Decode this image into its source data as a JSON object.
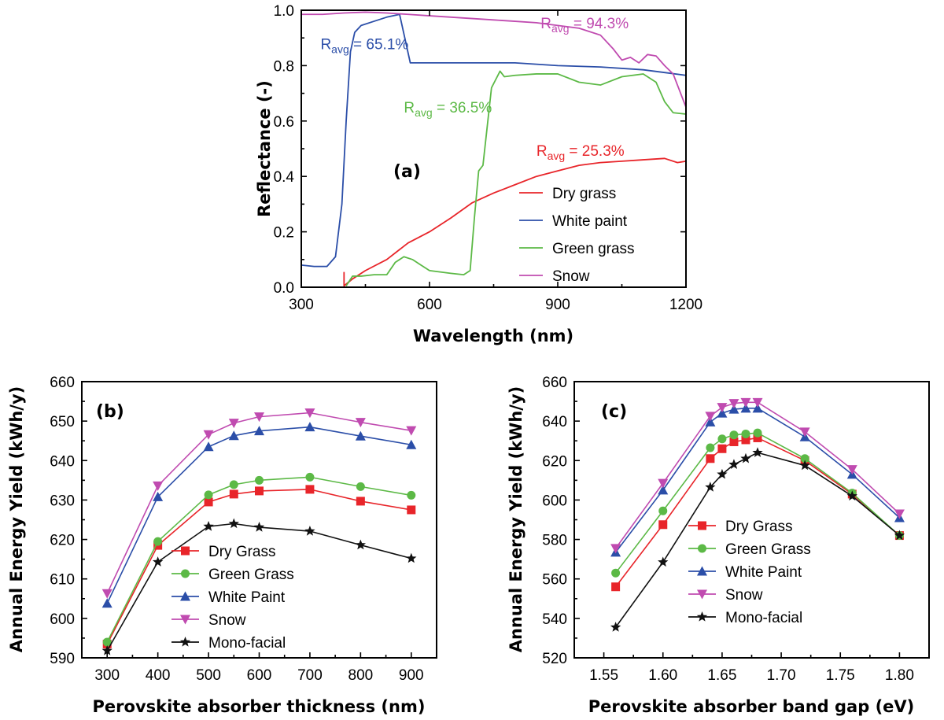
{
  "chart_data": [
    {
      "id": "a",
      "type": "line",
      "panel_label": "(a)",
      "xlabel": "Wavelength (nm)",
      "ylabel": "Reflectance (-)",
      "xlim": [
        300,
        1200
      ],
      "ylim": [
        0,
        1.0
      ],
      "xticks": [
        300,
        600,
        900,
        1200
      ],
      "xtick_labels": [
        "300",
        "600",
        "900",
        "1200"
      ],
      "yticks": [
        0,
        0.2,
        0.4,
        0.6,
        0.8,
        1.0
      ],
      "ytick_labels": [
        "0.0",
        "0.2",
        "0.4",
        "0.6",
        "0.8",
        "1.0"
      ],
      "legend_position": "bottom-right",
      "series": [
        {
          "name": "Dry grass",
          "color": "#e8252a",
          "x": [
            400,
            400,
            420,
            450,
            500,
            550,
            600,
            650,
            700,
            750,
            800,
            850,
            900,
            950,
            1000,
            1050,
            1100,
            1150,
            1180,
            1200
          ],
          "y": [
            0.055,
            0.005,
            0.03,
            0.06,
            0.1,
            0.16,
            0.2,
            0.25,
            0.305,
            0.34,
            0.37,
            0.4,
            0.42,
            0.44,
            0.45,
            0.455,
            0.46,
            0.465,
            0.45,
            0.455
          ]
        },
        {
          "name": "White paint",
          "color": "#2b4ea8",
          "x": [
            300,
            330,
            360,
            380,
            395,
            405,
            415,
            425,
            440,
            470,
            500,
            530,
            555,
            600,
            700,
            800,
            900,
            1000,
            1100,
            1150,
            1200
          ],
          "y": [
            0.08,
            0.075,
            0.075,
            0.11,
            0.3,
            0.6,
            0.85,
            0.92,
            0.945,
            0.96,
            0.975,
            0.985,
            0.81,
            0.81,
            0.81,
            0.81,
            0.8,
            0.795,
            0.785,
            0.775,
            0.765
          ]
        },
        {
          "name": "Green grass",
          "color": "#5cb946",
          "x": [
            405,
            420,
            440,
            470,
            500,
            520,
            540,
            560,
            580,
            600,
            650,
            680,
            695,
            705,
            715,
            725,
            735,
            745,
            755,
            765,
            775,
            800,
            850,
            900,
            950,
            1000,
            1050,
            1100,
            1130,
            1150,
            1170,
            1200
          ],
          "y": [
            0.005,
            0.04,
            0.04,
            0.045,
            0.045,
            0.09,
            0.11,
            0.1,
            0.08,
            0.06,
            0.05,
            0.045,
            0.06,
            0.25,
            0.42,
            0.44,
            0.58,
            0.72,
            0.75,
            0.78,
            0.76,
            0.765,
            0.77,
            0.77,
            0.74,
            0.73,
            0.76,
            0.77,
            0.74,
            0.67,
            0.63,
            0.625
          ]
        },
        {
          "name": "Snow",
          "color": "#c04bb0",
          "x": [
            300,
            350,
            400,
            450,
            500,
            550,
            600,
            650,
            700,
            750,
            800,
            850,
            900,
            950,
            1000,
            1030,
            1050,
            1070,
            1090,
            1110,
            1130,
            1150,
            1170,
            1200
          ],
          "y": [
            0.985,
            0.985,
            0.99,
            0.993,
            0.99,
            0.985,
            0.98,
            0.975,
            0.97,
            0.965,
            0.96,
            0.955,
            0.945,
            0.935,
            0.91,
            0.86,
            0.82,
            0.83,
            0.81,
            0.84,
            0.835,
            0.8,
            0.77,
            0.65
          ]
        }
      ],
      "annotations": [
        {
          "base": "R",
          "sub": "avg",
          "rest": " = 65.1%",
          "color": "#2b4ea8",
          "x": 345,
          "y": 0.86
        },
        {
          "base": "R",
          "sub": "avg",
          "rest": " = 94.3%",
          "color": "#c04bb0",
          "x": 860,
          "y": 0.935
        },
        {
          "base": "R",
          "sub": "avg",
          "rest": " = 36.5%",
          "color": "#5cb946",
          "x": 540,
          "y": 0.63
        },
        {
          "base": "R",
          "sub": "avg",
          "rest": " = 25.3%",
          "color": "#e8252a",
          "x": 850,
          "y": 0.475
        }
      ]
    },
    {
      "id": "b",
      "type": "line",
      "panel_label": "(b)",
      "xlabel": "Perovskite absorber thickness (nm)",
      "ylabel": "Annual Energy Yield (kWh/y)",
      "xlim": [
        250,
        950
      ],
      "ylim": [
        590,
        660
      ],
      "xticks": [
        300,
        400,
        500,
        600,
        700,
        800,
        900
      ],
      "xtick_labels": [
        "300",
        "400",
        "500",
        "600",
        "700",
        "800",
        "900"
      ],
      "yticks": [
        590,
        600,
        610,
        620,
        630,
        640,
        650,
        660
      ],
      "ytick_labels": [
        "590",
        "600",
        "610",
        "620",
        "630",
        "640",
        "650",
        "660"
      ],
      "x": [
        300,
        400,
        500,
        550,
        600,
        700,
        800,
        900
      ],
      "legend_position": "lower-center",
      "series": [
        {
          "name": "Dry Grass",
          "color": "#e8252a",
          "marker": "square",
          "values": [
            593.5,
            618.5,
            629.5,
            631.5,
            632.3,
            632.7,
            629.7,
            627.5
          ]
        },
        {
          "name": "Green Grass",
          "color": "#5cb946",
          "marker": "circle",
          "values": [
            594.0,
            619.5,
            631.3,
            633.9,
            635.0,
            635.8,
            633.4,
            631.2
          ]
        },
        {
          "name": "White Paint",
          "color": "#2b4ea8",
          "marker": "triangle-up",
          "values": [
            603.8,
            630.8,
            643.5,
            646.3,
            647.5,
            648.5,
            646.2,
            644.0
          ]
        },
        {
          "name": "Snow",
          "color": "#c04bb0",
          "marker": "triangle-down",
          "values": [
            606.3,
            633.6,
            646.6,
            649.5,
            651.1,
            652.1,
            649.7,
            647.6
          ]
        },
        {
          "name": "Mono-facial",
          "color": "#111111",
          "marker": "star",
          "values": [
            591.8,
            614.3,
            623.3,
            624.0,
            623.1,
            622.1,
            618.6,
            615.2
          ]
        }
      ]
    },
    {
      "id": "c",
      "type": "line",
      "panel_label": "(c)",
      "xlabel": "Perovskite absorber band gap (eV)",
      "ylabel": "Annual Energy Yield (kWh/y)",
      "xlim": [
        1.525,
        1.825
      ],
      "ylim": [
        520,
        660
      ],
      "xticks": [
        1.55,
        1.6,
        1.65,
        1.7,
        1.75,
        1.8
      ],
      "xtick_labels": [
        "1.55",
        "1.60",
        "1.65",
        "1.70",
        "1.75",
        "1.80"
      ],
      "yticks": [
        520,
        540,
        560,
        580,
        600,
        620,
        640,
        660
      ],
      "ytick_labels": [
        "520",
        "540",
        "560",
        "580",
        "600",
        "620",
        "640",
        "660"
      ],
      "x": [
        1.56,
        1.6,
        1.64,
        1.65,
        1.66,
        1.67,
        1.68,
        1.72,
        1.76,
        1.8
      ],
      "legend_position": "lower-left",
      "series": [
        {
          "name": "Dry Grass",
          "color": "#e8252a",
          "marker": "square",
          "values": [
            556,
            587.5,
            621,
            626,
            629.5,
            630.5,
            631.5,
            620,
            603,
            582
          ]
        },
        {
          "name": "Green Grass",
          "color": "#5cb946",
          "marker": "circle",
          "values": [
            563,
            594.5,
            626.5,
            631,
            633,
            633.5,
            634,
            621,
            603.5,
            582
          ]
        },
        {
          "name": "White Paint",
          "color": "#2b4ea8",
          "marker": "triangle-up",
          "values": [
            573.5,
            605,
            639.5,
            644,
            646,
            646.5,
            646.5,
            632,
            613,
            591
          ]
        },
        {
          "name": "Snow",
          "color": "#c04bb0",
          "marker": "triangle-down",
          "values": [
            575.5,
            608.5,
            642.5,
            647,
            649,
            649.5,
            649.5,
            634.5,
            615.5,
            593
          ]
        },
        {
          "name": "Mono-facial",
          "color": "#111111",
          "marker": "star",
          "values": [
            535.5,
            568.5,
            606.5,
            613,
            618,
            621,
            624,
            617.5,
            602,
            582
          ]
        }
      ]
    }
  ]
}
